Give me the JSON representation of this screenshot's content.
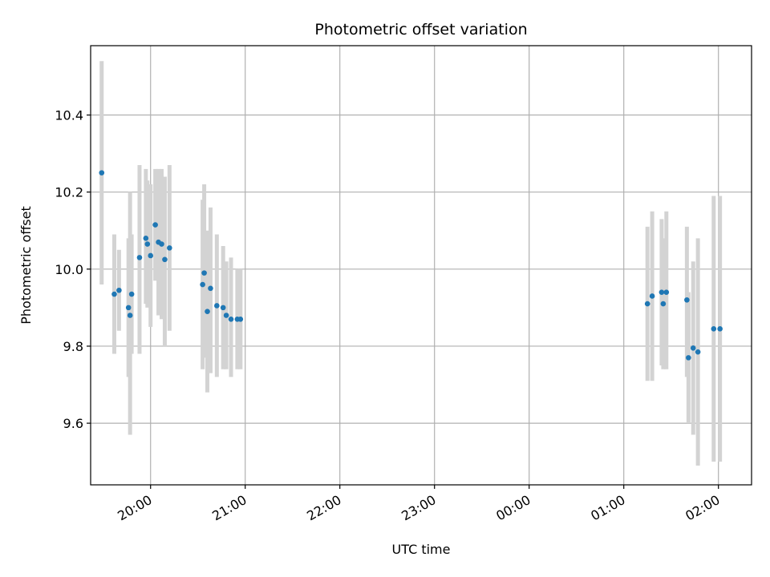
{
  "chart_data": {
    "type": "scatter",
    "title": "Photometric offset variation",
    "xlabel": "UTC time",
    "ylabel": "Photometric offset",
    "xlim": [
      "19:22",
      "02:21"
    ],
    "ylim": [
      9.44,
      10.58
    ],
    "grid": true,
    "colors": {
      "point": "#1f77b4",
      "errorbar": "#d3d3d3",
      "grid": "#b0b0b0"
    },
    "x_ticks": [
      "20:00",
      "21:00",
      "22:00",
      "23:00",
      "00:00",
      "01:00",
      "02:00"
    ],
    "y_ticks": [
      "9.6",
      "9.8",
      "10.0",
      "10.2",
      "10.4"
    ],
    "series": [
      {
        "points": [
          {
            "x": "19:29",
            "y": 10.25,
            "ylo": 9.96,
            "yhi": 10.54
          },
          {
            "x": "19:37",
            "y": 9.935,
            "ylo": 9.78,
            "yhi": 10.09
          },
          {
            "x": "19:40",
            "y": 9.945,
            "ylo": 9.84,
            "yhi": 10.05
          },
          {
            "x": "19:46",
            "y": 9.9,
            "ylo": 9.72,
            "yhi": 10.08
          },
          {
            "x": "19:47",
            "y": 9.88,
            "ylo": 9.57,
            "yhi": 10.2
          },
          {
            "x": "19:48",
            "y": 9.935,
            "ylo": 9.78,
            "yhi": 10.09
          },
          {
            "x": "19:53",
            "y": 10.03,
            "ylo": 9.78,
            "yhi": 10.27
          },
          {
            "x": "19:57",
            "y": 10.08,
            "ylo": 9.91,
            "yhi": 10.26
          },
          {
            "x": "19:58",
            "y": 10.065,
            "ylo": 9.9,
            "yhi": 10.23
          },
          {
            "x": "20:00",
            "y": 10.035,
            "ylo": 9.85,
            "yhi": 10.22
          },
          {
            "x": "20:03",
            "y": 10.115,
            "ylo": 9.97,
            "yhi": 10.26
          },
          {
            "x": "20:05",
            "y": 10.07,
            "ylo": 9.88,
            "yhi": 10.26
          },
          {
            "x": "20:07",
            "y": 10.065,
            "ylo": 9.87,
            "yhi": 10.26
          },
          {
            "x": "20:09",
            "y": 10.025,
            "ylo": 9.8,
            "yhi": 10.24
          },
          {
            "x": "20:12",
            "y": 10.055,
            "ylo": 9.84,
            "yhi": 10.27
          },
          {
            "x": "20:33",
            "y": 9.96,
            "ylo": 9.74,
            "yhi": 10.18
          },
          {
            "x": "20:34",
            "y": 9.99,
            "ylo": 9.77,
            "yhi": 10.22
          },
          {
            "x": "20:36",
            "y": 9.89,
            "ylo": 9.68,
            "yhi": 10.1
          },
          {
            "x": "20:38",
            "y": 9.95,
            "ylo": 9.73,
            "yhi": 10.16
          },
          {
            "x": "20:42",
            "y": 9.905,
            "ylo": 9.72,
            "yhi": 10.09
          },
          {
            "x": "20:46",
            "y": 9.9,
            "ylo": 9.74,
            "yhi": 10.06
          },
          {
            "x": "20:48",
            "y": 9.88,
            "ylo": 9.74,
            "yhi": 10.02
          },
          {
            "x": "20:51",
            "y": 9.87,
            "ylo": 9.72,
            "yhi": 10.03
          },
          {
            "x": "20:55",
            "y": 9.87,
            "ylo": 9.74,
            "yhi": 10.0
          },
          {
            "x": "20:57",
            "y": 9.87,
            "ylo": 9.74,
            "yhi": 10.0
          },
          {
            "x": "01:15",
            "y": 9.91,
            "ylo": 9.71,
            "yhi": 10.11
          },
          {
            "x": "01:18",
            "y": 9.93,
            "ylo": 9.71,
            "yhi": 10.15
          },
          {
            "x": "01:24",
            "y": 9.94,
            "ylo": 9.75,
            "yhi": 10.13
          },
          {
            "x": "01:25",
            "y": 9.91,
            "ylo": 9.74,
            "yhi": 10.08
          },
          {
            "x": "01:27",
            "y": 9.94,
            "ylo": 9.74,
            "yhi": 10.15
          },
          {
            "x": "01:40",
            "y": 9.92,
            "ylo": 9.72,
            "yhi": 10.11
          },
          {
            "x": "01:41",
            "y": 9.77,
            "ylo": 9.6,
            "yhi": 9.94
          },
          {
            "x": "01:44",
            "y": 9.795,
            "ylo": 9.57,
            "yhi": 10.02
          },
          {
            "x": "01:47",
            "y": 9.785,
            "ylo": 9.49,
            "yhi": 10.08
          },
          {
            "x": "01:57",
            "y": 9.845,
            "ylo": 9.5,
            "yhi": 10.19
          },
          {
            "x": "02:01",
            "y": 9.845,
            "ylo": 9.5,
            "yhi": 10.19
          }
        ]
      }
    ]
  }
}
